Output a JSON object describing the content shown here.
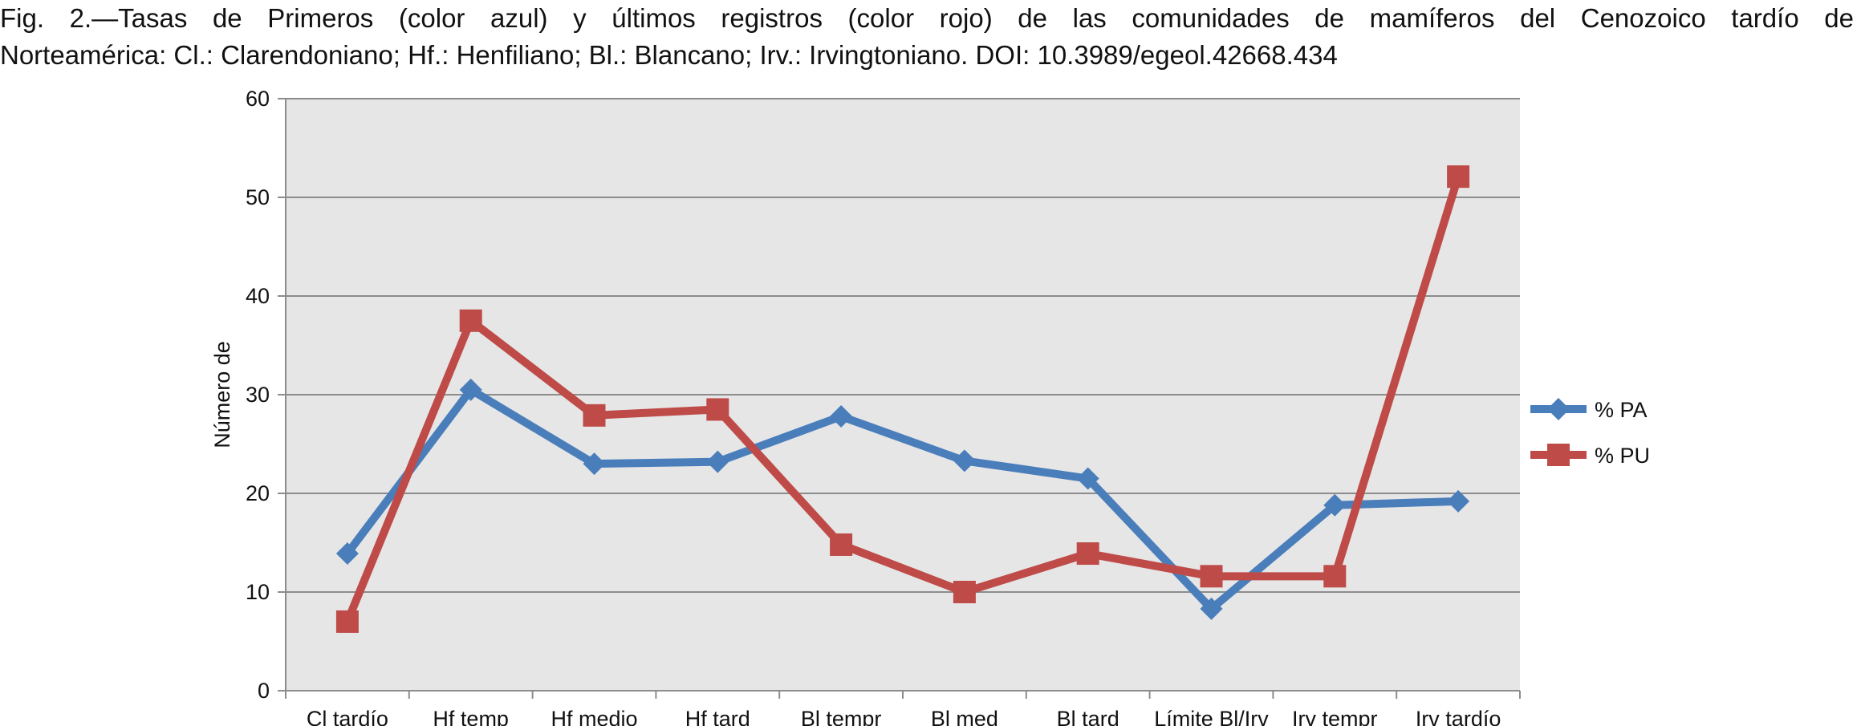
{
  "caption": {
    "line1": "Fig. 2.—Tasas de Primeros (color azul) y últimos registros (color rojo) de las comunidades de mamíferos del Cenozoico tardío de",
    "line2": "Norteamérica: Cl.: Clarendoniano; Hf.: Henfiliano; Bl.: Blancano; Irv.: Irvingtoniano. DOI: 10.3989/egeol.42668.434"
  },
  "chart_data": {
    "type": "line",
    "title": "",
    "xlabel": "",
    "ylabel": "Número de",
    "ylim": [
      0,
      60
    ],
    "yticks": [
      0,
      10,
      20,
      30,
      40,
      50,
      60
    ],
    "grid": true,
    "legend_position": "right",
    "categories": [
      "Cl tardío",
      "Hf temp",
      "Hf medio",
      "Hf tard",
      "Bl tempr",
      "Bl med",
      "Bl tard",
      "Límite Bl/Irv",
      "Irv tempr",
      "Irv tardío"
    ],
    "series": [
      {
        "name": "% PA",
        "color": "#4a7ebb",
        "marker": "diamond",
        "values": [
          13.9,
          30.5,
          23.0,
          23.2,
          27.8,
          23.3,
          21.5,
          8.3,
          18.8,
          19.2
        ]
      },
      {
        "name": "% PU",
        "color": "#be4b48",
        "marker": "square",
        "values": [
          7.0,
          37.5,
          27.9,
          28.5,
          14.8,
          10.0,
          13.9,
          11.6,
          11.6,
          52.1
        ]
      }
    ],
    "plot_background": "#e6e6e6",
    "grid_color": "#8c8c8c"
  }
}
